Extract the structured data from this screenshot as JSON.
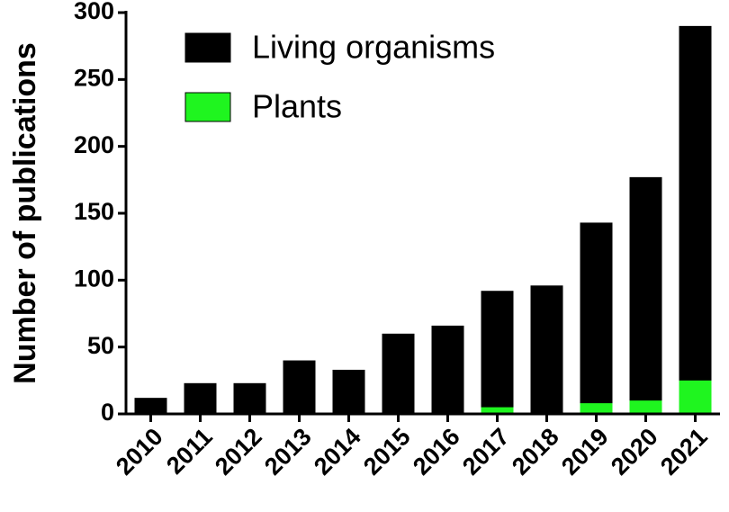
{
  "chart_data": {
    "type": "bar",
    "ylabel": "Number of publications",
    "categories": [
      "2010",
      "2011",
      "2012",
      "2013",
      "2014",
      "2015",
      "2016",
      "2017",
      "2018",
      "2019",
      "2020",
      "2021"
    ],
    "series": [
      {
        "name": "Living organisms",
        "color": "#000000",
        "values": [
          12,
          23,
          23,
          40,
          33,
          60,
          66,
          92,
          96,
          143,
          177,
          290
        ]
      },
      {
        "name": "Plants",
        "color": "#1ff51f",
        "values": [
          0,
          1,
          0,
          1,
          0,
          1,
          0,
          5,
          0,
          8,
          10,
          25
        ]
      }
    ],
    "ylim": [
      0,
      300
    ],
    "yticks": [
      0,
      50,
      100,
      150,
      200,
      250,
      300
    ]
  }
}
